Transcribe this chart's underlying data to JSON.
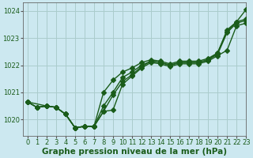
{
  "title": "Graphe pression niveau de la mer (hPa)",
  "bg_color": "#cce8f0",
  "grid_color": "#aacccc",
  "line_color": "#1a5c1a",
  "xlim": [
    -0.5,
    23
  ],
  "ylim": [
    1019.4,
    1024.3
  ],
  "yticks": [
    1020,
    1021,
    1022,
    1023,
    1024
  ],
  "xticks": [
    0,
    1,
    2,
    3,
    4,
    5,
    6,
    7,
    8,
    9,
    10,
    11,
    12,
    13,
    14,
    15,
    16,
    17,
    18,
    19,
    20,
    21,
    22,
    23
  ],
  "series": [
    {
      "x": [
        0,
        1,
        2,
        3,
        4,
        5,
        6,
        7,
        8,
        9,
        10,
        11,
        12,
        13,
        14,
        15,
        16,
        17,
        18,
        19,
        20,
        21,
        22,
        23
      ],
      "y": [
        1020.65,
        1020.45,
        1020.5,
        1020.45,
        1020.2,
        1019.7,
        1019.75,
        1019.75,
        1020.3,
        1020.35,
        1021.3,
        1021.6,
        1021.9,
        1022.1,
        1022.05,
        1021.95,
        1022.05,
        1022.05,
        1022.05,
        1022.15,
        1022.35,
        1022.55,
        1023.45,
        1023.55
      ]
    },
    {
      "x": [
        0,
        1,
        2,
        3,
        4,
        5,
        6,
        7,
        8,
        9,
        10,
        11,
        12,
        13,
        14,
        15,
        16,
        17,
        18,
        19,
        20,
        21,
        22,
        23
      ],
      "y": [
        1020.65,
        1020.45,
        1020.5,
        1020.45,
        1020.2,
        1019.7,
        1019.75,
        1019.75,
        1020.5,
        1021.0,
        1021.55,
        1021.75,
        1022.0,
        1022.15,
        1022.1,
        1022.0,
        1022.1,
        1022.1,
        1022.1,
        1022.2,
        1022.4,
        1023.2,
        1023.55,
        1023.65
      ]
    },
    {
      "x": [
        0,
        2,
        3,
        4,
        5,
        6,
        7,
        8,
        9,
        10,
        11,
        12,
        13,
        14,
        15,
        16,
        17,
        18,
        19,
        20,
        21,
        22,
        23
      ],
      "y": [
        1020.65,
        1020.5,
        1020.45,
        1020.2,
        1019.7,
        1019.75,
        1019.75,
        1021.0,
        1021.45,
        1021.75,
        1021.9,
        1022.1,
        1022.2,
        1022.15,
        1022.05,
        1022.15,
        1022.15,
        1022.15,
        1022.25,
        1022.45,
        1023.25,
        1023.6,
        1023.7
      ]
    },
    {
      "x": [
        0,
        1,
        2,
        3,
        4,
        5,
        6,
        7,
        8,
        9,
        10,
        11,
        12,
        13,
        14,
        15,
        16,
        17,
        18,
        19,
        20,
        21,
        22,
        23
      ],
      "y": [
        1020.65,
        1020.45,
        1020.5,
        1020.45,
        1020.2,
        1019.7,
        1019.75,
        1019.75,
        1020.3,
        1020.9,
        1021.4,
        1021.65,
        1021.95,
        1022.15,
        1022.1,
        1022.0,
        1022.1,
        1022.1,
        1022.1,
        1022.2,
        1022.45,
        1023.3,
        1023.6,
        1024.05
      ]
    }
  ],
  "marker_size": 3,
  "line_width": 1.0,
  "title_fontsize": 7.5,
  "tick_fontsize": 6
}
